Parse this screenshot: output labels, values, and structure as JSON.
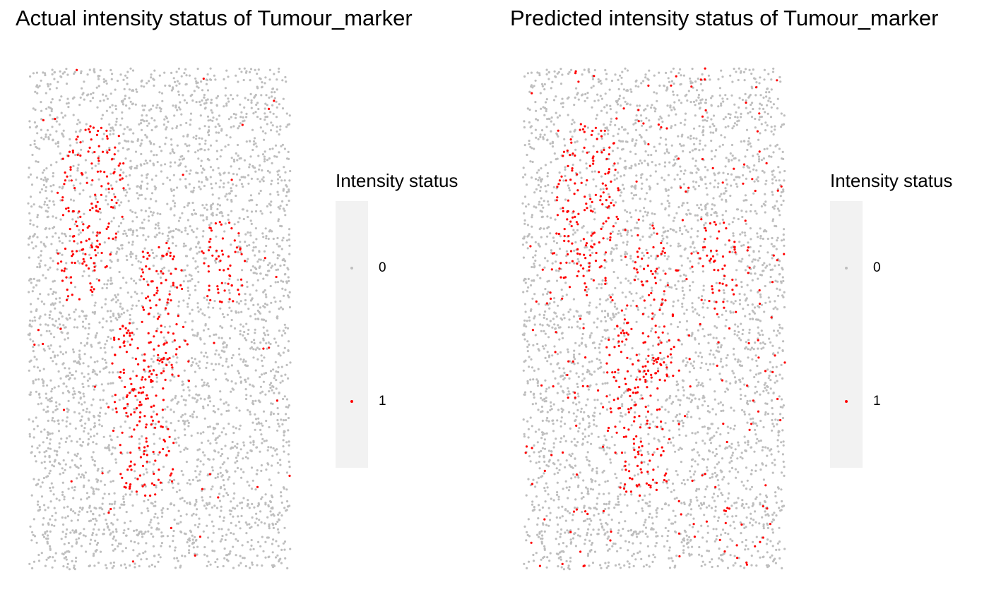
{
  "chart_data": [
    {
      "type": "scatter",
      "title": "Actual intensity status of Tumour_marker",
      "legend": {
        "title": "Intensity status",
        "placement": "right",
        "entries": [
          {
            "label": "0",
            "color": "#bebebe"
          },
          {
            "label": "1",
            "color": "#ff0000"
          }
        ]
      },
      "axes_visible": false,
      "grid": false,
      "xlim": [
        0,
        1
      ],
      "ylim": [
        0,
        1
      ],
      "marker_size": 2,
      "background_density": 3800,
      "background_positive_fraction": 0.012,
      "clusters": [
        {
          "x": 0.25,
          "y": 0.74,
          "rx": 0.12,
          "ry": 0.15,
          "density": 0.55
        },
        {
          "x": 0.2,
          "y": 0.61,
          "rx": 0.09,
          "ry": 0.09,
          "density": 0.55
        },
        {
          "x": 0.5,
          "y": 0.58,
          "rx": 0.09,
          "ry": 0.08,
          "density": 0.55
        },
        {
          "x": 0.3,
          "y": 0.82,
          "rx": 0.07,
          "ry": 0.06,
          "density": 0.55
        },
        {
          "x": 0.53,
          "y": 0.44,
          "rx": 0.1,
          "ry": 0.08,
          "density": 0.6
        },
        {
          "x": 0.41,
          "y": 0.42,
          "rx": 0.1,
          "ry": 0.08,
          "density": 0.6
        },
        {
          "x": 0.42,
          "y": 0.32,
          "rx": 0.12,
          "ry": 0.08,
          "density": 0.6
        },
        {
          "x": 0.45,
          "y": 0.22,
          "rx": 0.12,
          "ry": 0.08,
          "density": 0.6
        },
        {
          "x": 0.74,
          "y": 0.61,
          "rx": 0.09,
          "ry": 0.09,
          "density": 0.6
        }
      ]
    },
    {
      "type": "scatter",
      "title": "Predicted intensity status of Tumour_marker",
      "legend": {
        "title": "Intensity status",
        "placement": "right",
        "entries": [
          {
            "label": "0",
            "color": "#bebebe"
          },
          {
            "label": "1",
            "color": "#ff0000"
          }
        ]
      },
      "axes_visible": false,
      "grid": false,
      "xlim": [
        0,
        1
      ],
      "ylim": [
        0,
        1
      ],
      "marker_size": 2,
      "background_density": 3800,
      "background_positive_fraction": 0.07,
      "clusters": [
        {
          "x": 0.25,
          "y": 0.74,
          "rx": 0.12,
          "ry": 0.15,
          "density": 0.55
        },
        {
          "x": 0.2,
          "y": 0.61,
          "rx": 0.09,
          "ry": 0.09,
          "density": 0.55
        },
        {
          "x": 0.5,
          "y": 0.58,
          "rx": 0.09,
          "ry": 0.08,
          "density": 0.55
        },
        {
          "x": 0.3,
          "y": 0.82,
          "rx": 0.07,
          "ry": 0.06,
          "density": 0.55
        },
        {
          "x": 0.53,
          "y": 0.44,
          "rx": 0.1,
          "ry": 0.08,
          "density": 0.6
        },
        {
          "x": 0.41,
          "y": 0.42,
          "rx": 0.1,
          "ry": 0.08,
          "density": 0.6
        },
        {
          "x": 0.42,
          "y": 0.32,
          "rx": 0.12,
          "ry": 0.08,
          "density": 0.6
        },
        {
          "x": 0.45,
          "y": 0.22,
          "rx": 0.12,
          "ry": 0.08,
          "density": 0.6
        },
        {
          "x": 0.74,
          "y": 0.61,
          "rx": 0.09,
          "ry": 0.09,
          "density": 0.6
        }
      ]
    }
  ]
}
